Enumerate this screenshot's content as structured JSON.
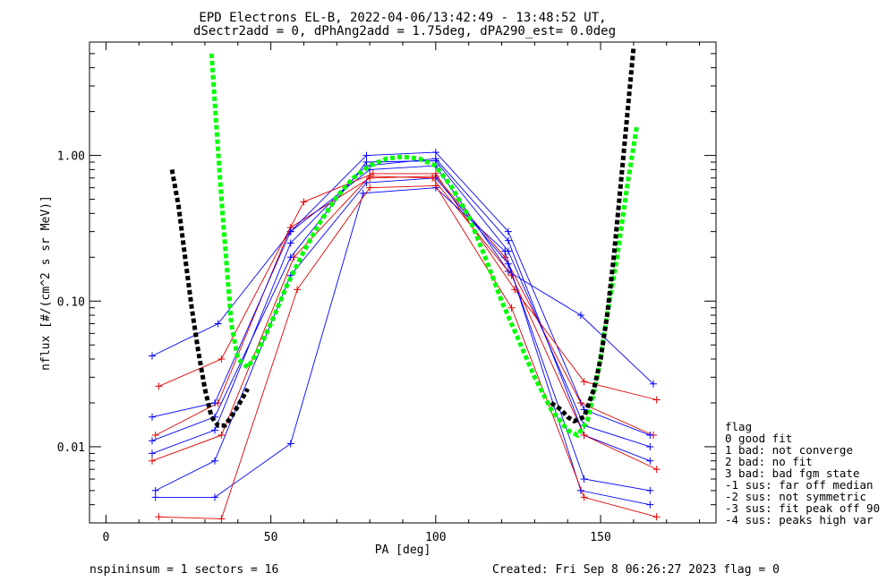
{
  "title_lines": [
    "EPD Electrons EL-B, 2022-04-06/13:42:49 - 13:48:52 UT,",
    "dSectr2add = 0, dPhAng2add = 1.75deg, dPA290_est=    0.0deg"
  ],
  "footer": {
    "left": "nspininsum =  1  sectors = 16",
    "right": "Created: Fri Sep  8 06:26:27 2023   flag = 0"
  },
  "flag_legend": {
    "title": "flag",
    "items": [
      " 0 good fit",
      " 1 bad: not converge",
      " 2 bad: no fit",
      " 3 bad: bad fgm state",
      "-1 sus: far off median",
      "-2 sus: not symmetric",
      "-3 sus: fit peak off 90",
      "-4 sus: peaks high var"
    ]
  },
  "chart_data": {
    "type": "line",
    "title": "EPD Electrons EL-B, 2022-04-06/13:42:49 - 13:48:52 UT, dSectr2add = 0, dPhAng2add = 1.75deg, dPA290_est=    0.0deg",
    "xlabel": "PA [deg]",
    "ylabel": "nflux [#/(cm^2 s sr MeV)]",
    "xlim": [
      -5,
      185
    ],
    "ylim": [
      0.003,
      6.0
    ],
    "yscale": "log",
    "xticks": [
      0,
      50,
      100,
      150
    ],
    "yticks": [
      {
        "value": 0.01,
        "label": "0.01"
      },
      {
        "value": 0.1,
        "label": "0.10"
      },
      {
        "value": 1.0,
        "label": "1.00"
      }
    ],
    "grid": false,
    "colors": {
      "red_series": "#e00000",
      "blue_series": "#0000ff",
      "green_fit": "#00ff00",
      "black_fit": "#000000"
    },
    "series": [
      {
        "color": "blue",
        "x": [
          14,
          33,
          56,
          79,
          100,
          122,
          145,
          165
        ],
        "y": [
          0.009,
          0.013,
          0.25,
          0.85,
          0.95,
          0.26,
          0.012,
          0.008
        ]
      },
      {
        "color": "red",
        "x": [
          15,
          34,
          56,
          80,
          100,
          121,
          144,
          166
        ],
        "y": [
          0.012,
          0.02,
          0.32,
          0.7,
          0.72,
          0.2,
          0.02,
          0.012
        ]
      },
      {
        "color": "blue",
        "x": [
          14,
          33,
          56,
          79,
          100,
          122,
          145,
          165
        ],
        "y": [
          0.016,
          0.02,
          0.3,
          1.0,
          1.05,
          0.3,
          0.018,
          0.012
        ]
      },
      {
        "color": "blue",
        "x": [
          14,
          34,
          56,
          80,
          100,
          122,
          144,
          166
        ],
        "y": [
          0.042,
          0.07,
          0.3,
          0.8,
          0.85,
          0.16,
          0.08,
          0.027
        ]
      },
      {
        "color": "red",
        "x": [
          16,
          35,
          60,
          81,
          100,
          124,
          145,
          167
        ],
        "y": [
          0.026,
          0.04,
          0.48,
          0.75,
          0.75,
          0.12,
          0.028,
          0.021
        ]
      },
      {
        "color": "blue",
        "x": [
          15,
          33,
          56,
          79,
          100,
          122,
          145,
          165
        ],
        "y": [
          0.005,
          0.008,
          0.15,
          0.65,
          0.7,
          0.18,
          0.006,
          0.005
        ]
      },
      {
        "color": "red",
        "x": [
          14,
          35,
          57,
          80,
          99,
          123,
          145,
          167
        ],
        "y": [
          0.008,
          0.012,
          0.2,
          0.72,
          0.7,
          0.15,
          0.012,
          0.007
        ]
      },
      {
        "color": "blue",
        "x": [
          15,
          33,
          56,
          78,
          100,
          121,
          144,
          165
        ],
        "y": [
          0.0045,
          0.0045,
          0.0105,
          0.55,
          0.6,
          0.22,
          0.005,
          0.004
        ]
      },
      {
        "color": "red",
        "x": [
          16,
          35,
          58,
          80,
          100,
          123,
          145,
          167
        ],
        "y": [
          0.0033,
          0.0032,
          0.12,
          0.6,
          0.62,
          0.09,
          0.0045,
          0.0033
        ]
      },
      {
        "color": "blue",
        "x": [
          14,
          33,
          56,
          79,
          100,
          122,
          145,
          165
        ],
        "y": [
          0.011,
          0.016,
          0.2,
          0.9,
          0.92,
          0.22,
          0.014,
          0.01
        ]
      }
    ],
    "fits": [
      {
        "color": "green",
        "x": [
          32,
          35,
          38,
          40,
          43,
          46,
          50,
          55,
          60,
          65,
          70,
          75,
          80,
          85,
          90,
          95,
          100,
          105,
          110,
          115,
          120,
          125,
          130,
          135,
          140,
          143,
          146,
          149,
          152,
          155,
          158,
          161
        ],
        "y": [
          5.0,
          0.5,
          0.07,
          0.04,
          0.035,
          0.045,
          0.07,
          0.13,
          0.22,
          0.35,
          0.52,
          0.7,
          0.85,
          0.95,
          0.98,
          0.95,
          0.85,
          0.6,
          0.38,
          0.2,
          0.1,
          0.055,
          0.03,
          0.018,
          0.013,
          0.012,
          0.015,
          0.03,
          0.08,
          0.2,
          0.6,
          1.6
        ]
      },
      {
        "color": "black",
        "x": [
          20,
          22,
          24,
          26,
          28,
          30,
          32,
          34,
          36,
          38,
          40,
          43
        ],
        "y": [
          0.8,
          0.45,
          0.2,
          0.09,
          0.045,
          0.025,
          0.016,
          0.014,
          0.014,
          0.016,
          0.019,
          0.025
        ]
      },
      {
        "color": "black",
        "x": [
          135,
          138,
          140,
          142,
          145,
          148,
          150,
          152,
          154,
          156,
          158,
          160
        ],
        "y": [
          0.02,
          0.018,
          0.016,
          0.015,
          0.016,
          0.025,
          0.04,
          0.08,
          0.2,
          0.6,
          1.8,
          5.5
        ]
      }
    ]
  }
}
